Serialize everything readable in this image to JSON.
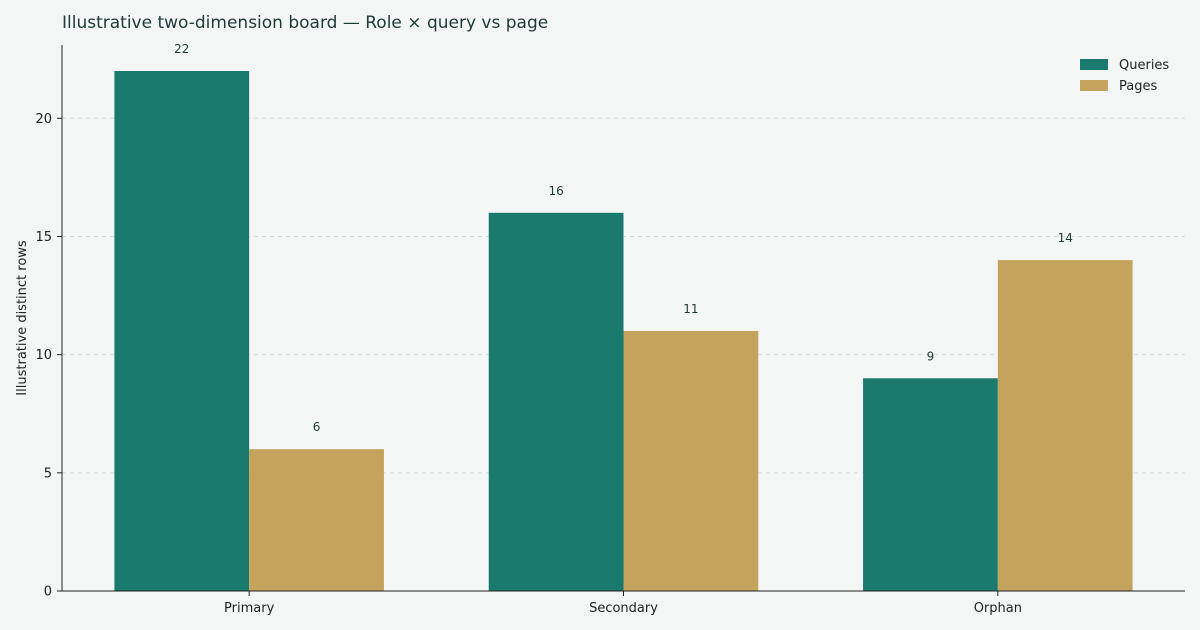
{
  "chart_data": {
    "type": "bar",
    "title": "Illustrative two-dimension board — Role × query vs page",
    "xlabel": "",
    "ylabel": "Illustrative distinct rows",
    "categories": [
      "Primary",
      "Secondary",
      "Orphan"
    ],
    "series": [
      {
        "name": "Queries",
        "values": [
          22,
          16,
          9
        ],
        "color": "#1b7a6e"
      },
      {
        "name": "Pages",
        "values": [
          6,
          11,
          14
        ],
        "color": "#c4a35c"
      }
    ],
    "ylim": [
      0,
      23.1
    ],
    "yticks": [
      0,
      5,
      10,
      15,
      20
    ],
    "grid": true,
    "legend_position": "top-right",
    "data_labels": true
  }
}
